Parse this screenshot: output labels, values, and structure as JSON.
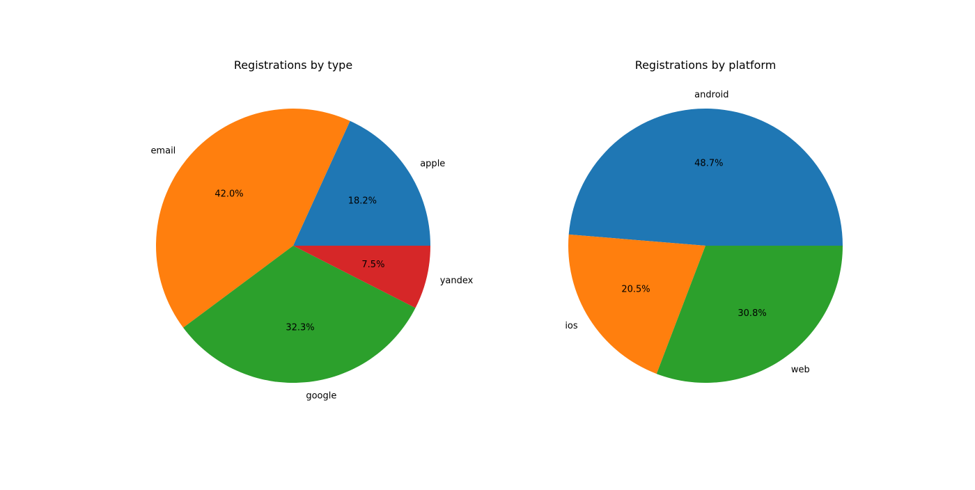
{
  "chart_data": [
    {
      "type": "pie",
      "title": "Registrations by type",
      "categories": [
        "apple",
        "email",
        "google",
        "yandex"
      ],
      "values": [
        18.2,
        42.0,
        32.3,
        7.5
      ],
      "value_labels": [
        "18.2%",
        "42.0%",
        "32.3%",
        "7.5%"
      ],
      "colors": [
        "#1f77b4",
        "#ff7f0e",
        "#2ca02c",
        "#d62728"
      ],
      "start_angle_deg": 0,
      "direction": "counterclockwise"
    },
    {
      "type": "pie",
      "title": "Registrations by platform",
      "categories": [
        "android",
        "ios",
        "web"
      ],
      "values": [
        48.7,
        20.5,
        30.8
      ],
      "value_labels": [
        "48.7%",
        "20.5%",
        "30.8%"
      ],
      "colors": [
        "#1f77b4",
        "#ff7f0e",
        "#2ca02c"
      ],
      "start_angle_deg": 0,
      "direction": "counterclockwise"
    }
  ]
}
